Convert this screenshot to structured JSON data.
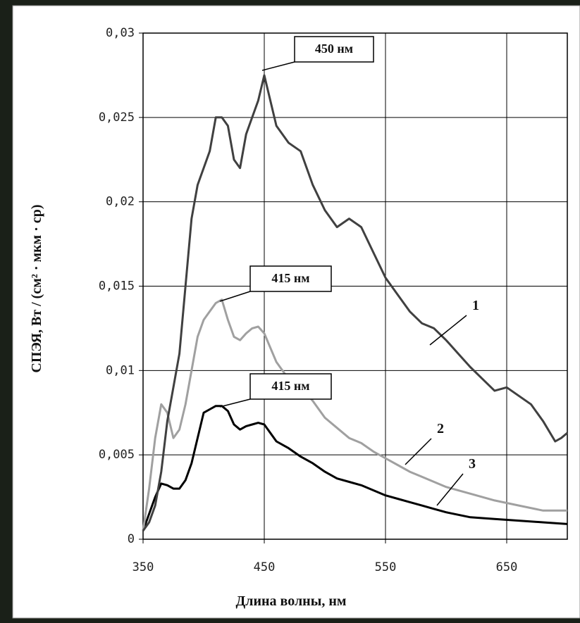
{
  "chart_data": {
    "type": "line",
    "xlabel": "Длина волны, нм",
    "ylabel": "СПЭЯ, Вт / (см² · мкм · ср)",
    "xlim": [
      350,
      700
    ],
    "xticks": [
      350,
      450,
      550,
      650
    ],
    "ylim": [
      0,
      0.03
    ],
    "yticks": [
      0,
      {
        "value": 0.005,
        "label": "0,005"
      },
      {
        "value": 0.01,
        "label": "0,01"
      },
      {
        "value": 0.015,
        "label": "0,015"
      },
      {
        "value": 0.02,
        "label": "0,02"
      },
      {
        "value": 0.025,
        "label": "0,025"
      },
      {
        "value": 0.03,
        "label": "0,03"
      }
    ],
    "grid": true,
    "annotations": [
      "450 нм",
      "415 нм",
      "415 нм"
    ],
    "series": [
      {
        "name": "1",
        "color": "#404040",
        "x": [
          350,
          355,
          360,
          365,
          370,
          375,
          380,
          385,
          390,
          395,
          400,
          405,
          410,
          415,
          420,
          425,
          430,
          435,
          440,
          445,
          450,
          455,
          460,
          470,
          480,
          490,
          500,
          510,
          520,
          530,
          540,
          550,
          560,
          570,
          580,
          590,
          600,
          610,
          620,
          630,
          640,
          650,
          660,
          670,
          680,
          690,
          695,
          700
        ],
        "values": [
          0.0005,
          0.001,
          0.002,
          0.004,
          0.007,
          0.009,
          0.011,
          0.015,
          0.019,
          0.021,
          0.022,
          0.023,
          0.025,
          0.025,
          0.0245,
          0.0225,
          0.022,
          0.024,
          0.025,
          0.026,
          0.0275,
          0.026,
          0.0245,
          0.0235,
          0.023,
          0.021,
          0.0195,
          0.0185,
          0.019,
          0.0185,
          0.017,
          0.0155,
          0.0145,
          0.0135,
          0.0128,
          0.0125,
          0.0118,
          0.011,
          0.0102,
          0.0095,
          0.0088,
          0.009,
          0.0085,
          0.008,
          0.007,
          0.0058,
          0.006,
          0.0063
        ]
      },
      {
        "name": "2",
        "color": "#a0a0a0",
        "x": [
          350,
          355,
          360,
          365,
          370,
          375,
          380,
          385,
          390,
          395,
          400,
          405,
          410,
          415,
          420,
          425,
          430,
          435,
          440,
          445,
          450,
          460,
          470,
          480,
          490,
          500,
          510,
          520,
          530,
          540,
          550,
          560,
          570,
          580,
          590,
          600,
          620,
          640,
          660,
          680,
          700
        ],
        "values": [
          0.0005,
          0.003,
          0.006,
          0.008,
          0.0075,
          0.006,
          0.0065,
          0.008,
          0.01,
          0.012,
          0.013,
          0.0135,
          0.014,
          0.0142,
          0.013,
          0.012,
          0.0118,
          0.0122,
          0.0125,
          0.0126,
          0.0122,
          0.0105,
          0.0095,
          0.009,
          0.0082,
          0.0072,
          0.0066,
          0.006,
          0.0057,
          0.0052,
          0.0048,
          0.0044,
          0.004,
          0.0037,
          0.0034,
          0.0031,
          0.0027,
          0.0023,
          0.002,
          0.0017,
          0.0017
        ]
      },
      {
        "name": "3",
        "color": "#000000",
        "x": [
          350,
          355,
          360,
          365,
          370,
          375,
          380,
          385,
          390,
          395,
          400,
          405,
          410,
          415,
          420,
          425,
          430,
          435,
          440,
          445,
          450,
          460,
          470,
          480,
          490,
          500,
          510,
          520,
          530,
          540,
          550,
          560,
          570,
          580,
          590,
          600,
          620,
          640,
          660,
          680,
          700
        ],
        "values": [
          0.0005,
          0.0015,
          0.0025,
          0.0033,
          0.0032,
          0.003,
          0.003,
          0.0035,
          0.0045,
          0.006,
          0.0075,
          0.0077,
          0.0079,
          0.0079,
          0.0076,
          0.0068,
          0.0065,
          0.0067,
          0.0068,
          0.0069,
          0.0068,
          0.0058,
          0.0054,
          0.0049,
          0.0045,
          0.004,
          0.0036,
          0.0034,
          0.0032,
          0.0029,
          0.0026,
          0.0024,
          0.0022,
          0.002,
          0.0018,
          0.0016,
          0.0013,
          0.0012,
          0.0011,
          0.001,
          0.0009
        ]
      }
    ]
  }
}
